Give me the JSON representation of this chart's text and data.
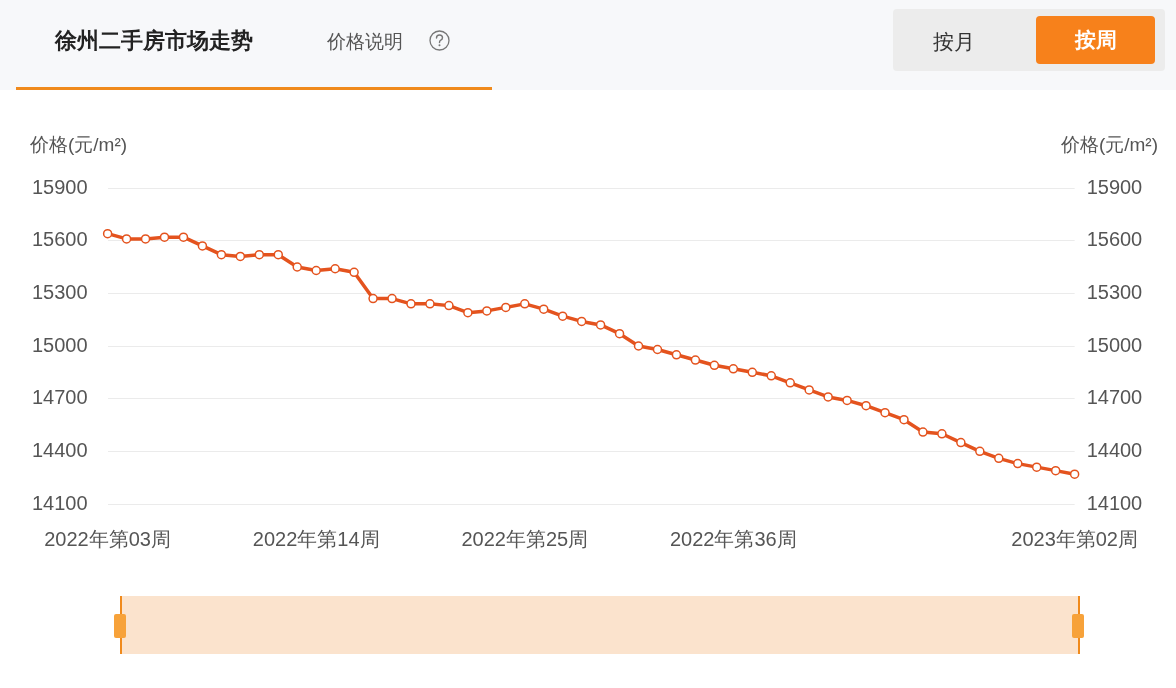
{
  "chart_data": {
    "type": "line",
    "title": "徐州二手房市场走势",
    "subtitle": "价格说明",
    "annotations": [
      "按月",
      "按周"
    ],
    "ylabel": "价格(元/m²)",
    "y2label": "价格(元/m²)",
    "categories": [
      "2022年第03周",
      null,
      null,
      null,
      null,
      null,
      null,
      null,
      null,
      null,
      null,
      "2022年第14周",
      null,
      null,
      null,
      null,
      null,
      null,
      null,
      null,
      null,
      null,
      "2022年第25周",
      null,
      null,
      null,
      null,
      null,
      null,
      null,
      null,
      null,
      null,
      "2022年第36周",
      null,
      null,
      null,
      null,
      null,
      null,
      null,
      null,
      null,
      null,
      null,
      null,
      null,
      null,
      null,
      null,
      null,
      "2023年第02周"
    ],
    "series": [
      {
        "color": "#e4531e",
        "values": [
          15640,
          15610,
          15610,
          15620,
          15620,
          15570,
          15520,
          15510,
          15520,
          15520,
          15450,
          15430,
          15440,
          15420,
          15270,
          15270,
          15240,
          15240,
          15230,
          15190,
          15200,
          15220,
          15240,
          15210,
          15170,
          15140,
          15120,
          15070,
          15000,
          14980,
          14950,
          14920,
          14890,
          14870,
          14850,
          14830,
          14790,
          14750,
          14710,
          14690,
          14660,
          14620,
          14580,
          14510,
          14500,
          14450,
          14400,
          14360,
          14330,
          14310,
          14290,
          14270
        ]
      }
    ],
    "ylim": [
      14100,
      15900
    ],
    "yticks": [
      14100,
      14400,
      14700,
      15000,
      15300,
      15600,
      15900
    ],
    "y2lim": [
      14100,
      15900
    ],
    "y2ticks": [
      14100,
      14400,
      14700,
      15000,
      15300,
      15600,
      15900
    ],
    "grid": "y",
    "legend": false,
    "marker": "circle",
    "line_style": "solid"
  }
}
